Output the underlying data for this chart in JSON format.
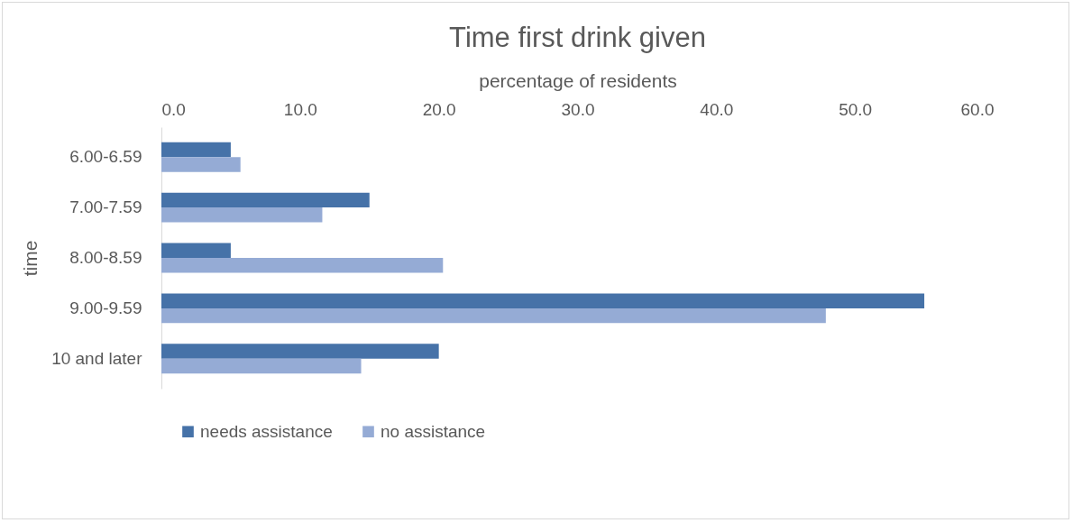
{
  "chart_data": {
    "type": "bar",
    "orientation": "horizontal",
    "title": "Time first drink given",
    "xlabel": "percentage of residents",
    "ylabel": "time",
    "categories": [
      "6.00-6.59",
      "7.00-7.59",
      "8.00-8.59",
      "9.00-9.59",
      "10 and later"
    ],
    "series": [
      {
        "name": "needs assistance",
        "color": "#4672a8",
        "values": [
          5.0,
          15.0,
          5.0,
          55.0,
          20.0
        ]
      },
      {
        "name": "no assistance",
        "color": "#95abd5",
        "values": [
          5.7,
          11.6,
          20.3,
          47.9,
          14.4
        ]
      }
    ],
    "xlim": [
      0,
      60
    ],
    "xticks": [
      {
        "value": 0,
        "label": "0.0"
      },
      {
        "value": 10,
        "label": "10.0"
      },
      {
        "value": 20,
        "label": "20.0"
      },
      {
        "value": 30,
        "label": "30.0"
      },
      {
        "value": 40,
        "label": "40.0"
      },
      {
        "value": 50,
        "label": "50.0"
      },
      {
        "value": 60,
        "label": "60.0"
      }
    ],
    "grid": false,
    "legend": "bottom"
  }
}
